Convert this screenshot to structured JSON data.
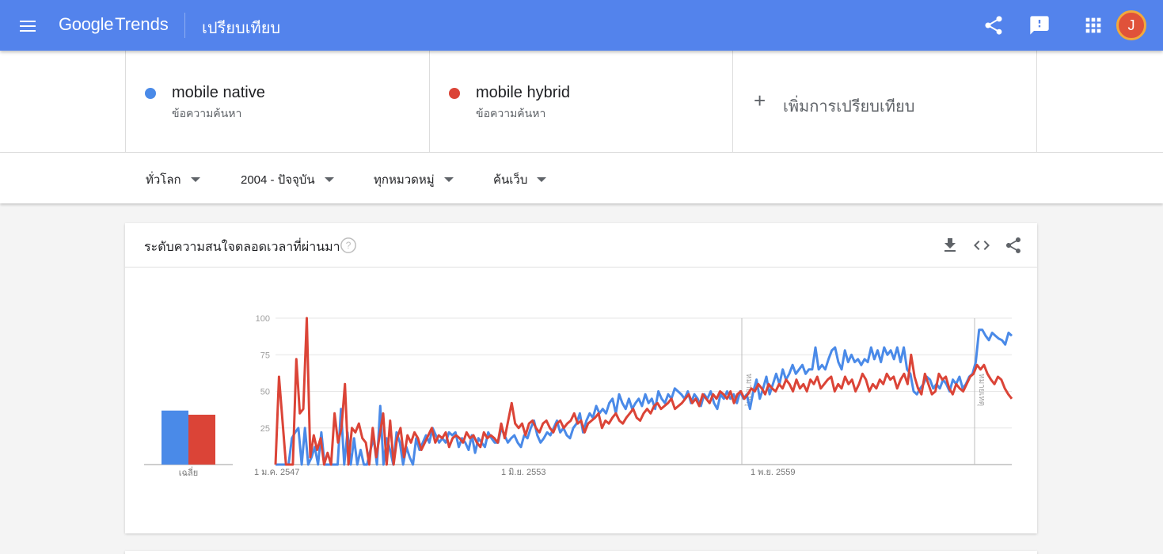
{
  "header": {
    "logo_google": "Google",
    "logo_trends": "Trends",
    "page_title": "เปรียบเทียบ",
    "avatar_letter": "J",
    "icons": [
      "menu-icon",
      "share-icon",
      "feedback-icon",
      "apps-icon"
    ]
  },
  "compare": {
    "terms": [
      {
        "name": "mobile native",
        "type": "ข้อความค้นหา",
        "color": "#4a8ae8"
      },
      {
        "name": "mobile hybrid",
        "type": "ข้อความค้นหา",
        "color": "#db4437"
      }
    ],
    "add_label": "เพิ่มการเปรียบเทียบ"
  },
  "filters": {
    "region": "ทั่วโลก",
    "time": "2004 - ปัจจุบัน",
    "category": "ทุกหมวดหมู่",
    "search_type": "ค้นเว็บ"
  },
  "card": {
    "title": "ระดับความสนใจตลอดเวลาที่ผ่านมา",
    "icons": [
      "help-icon",
      "download-icon",
      "embed-icon",
      "share-icon"
    ]
  },
  "chart_data": {
    "type": "line",
    "y_ticks": [
      "100",
      "75",
      "50",
      "25"
    ],
    "ylim": [
      0,
      100
    ],
    "x_ticks": [
      "1 ม.ค. 2547",
      "1 มิ.ย. 2553",
      "1 พ.ย. 2559"
    ],
    "notes": [
      "หมายเหตุ",
      "หมายเหตุ"
    ],
    "average_label": "เฉลี่ย",
    "averages": [
      39,
      36
    ],
    "series": [
      {
        "name": "mobile native",
        "color": "#4a8ae8",
        "values": [
          0,
          0,
          0,
          0,
          0,
          18,
          22,
          25,
          0,
          25,
          0,
          5,
          12,
          0,
          22,
          0,
          0,
          0,
          0,
          0,
          38,
          0,
          22,
          0,
          18,
          0,
          10,
          0,
          0,
          10,
          18,
          0,
          40,
          0,
          18,
          10,
          0,
          22,
          15,
          0,
          12,
          5,
          0,
          18,
          10,
          15,
          20,
          15,
          25,
          20,
          15,
          18,
          15,
          22,
          20,
          22,
          12,
          18,
          15,
          10,
          20,
          8,
          18,
          15,
          12,
          22,
          18,
          15,
          15,
          25,
          20,
          15,
          18,
          20,
          15,
          12,
          20,
          18,
          25,
          30,
          20,
          15,
          18,
          22,
          20,
          25,
          30,
          22,
          25,
          20,
          18,
          25,
          28,
          35,
          22,
          30,
          35,
          32,
          40,
          35,
          38,
          35,
          42,
          45,
          35,
          48,
          42,
          38,
          45,
          38,
          42,
          45,
          40,
          48,
          42,
          45,
          38,
          50,
          45,
          42,
          48,
          45,
          52,
          50,
          48,
          45,
          50,
          42,
          48,
          45,
          40,
          48,
          45,
          50,
          42,
          38,
          48,
          45,
          50,
          45,
          48,
          42,
          50,
          45,
          48,
          38,
          50,
          58,
          45,
          52,
          60,
          48,
          55,
          62,
          55,
          65,
          58,
          62,
          68,
          62,
          65,
          68,
          62,
          65,
          65,
          80,
          65,
          68,
          65,
          72,
          78,
          80,
          70,
          65,
          78,
          70,
          75,
          70,
          72,
          68,
          72,
          70,
          80,
          72,
          78,
          70,
          80,
          75,
          78,
          72,
          80,
          70,
          80,
          65,
          62,
          50,
          48,
          52,
          55,
          60,
          58,
          52,
          55,
          52,
          58,
          55,
          50,
          58,
          55,
          60,
          52,
          55,
          60,
          62,
          70,
          92,
          92,
          88,
          85,
          90,
          88,
          86,
          85,
          82,
          90,
          88
        ]
      },
      {
        "name": "mobile hybrid",
        "color": "#db4437",
        "values": [
          0,
          60,
          30,
          0,
          0,
          0,
          72,
          35,
          38,
          100,
          5,
          20,
          10,
          18,
          0,
          8,
          0,
          35,
          15,
          25,
          55,
          0,
          25,
          22,
          28,
          18,
          15,
          0,
          25,
          5,
          20,
          35,
          0,
          30,
          0,
          18,
          25,
          5,
          20,
          15,
          22,
          18,
          10,
          15,
          20,
          25,
          15,
          20,
          18,
          22,
          12,
          18,
          20,
          18,
          15,
          22,
          18,
          20,
          15,
          12,
          22,
          18,
          20,
          18,
          15,
          28,
          18,
          30,
          42,
          28,
          25,
          28,
          20,
          28,
          30,
          25,
          22,
          28,
          30,
          25,
          22,
          28,
          30,
          25,
          28,
          30,
          35,
          28,
          30,
          22,
          28,
          30,
          32,
          35,
          25,
          30,
          28,
          32,
          35,
          30,
          28,
          32,
          35,
          38,
          32,
          30,
          35,
          38,
          35,
          40,
          42,
          38,
          40,
          42,
          45,
          38,
          40,
          42,
          45,
          48,
          42,
          45,
          40,
          48,
          45,
          42,
          48,
          45,
          50,
          48,
          45,
          50,
          42,
          48,
          50,
          45,
          48,
          52,
          50,
          55,
          52,
          48,
          55,
          52,
          50,
          55,
          52,
          58,
          55,
          50,
          58,
          52,
          55,
          50,
          58,
          55,
          60,
          52,
          55,
          58,
          60,
          50,
          55,
          52,
          60,
          55,
          58,
          50,
          55,
          62,
          58,
          50,
          55,
          52,
          58,
          55,
          62,
          58,
          60,
          52,
          58,
          62,
          55,
          75,
          60,
          52,
          48,
          62,
          55,
          48,
          50,
          62,
          58,
          60,
          52,
          48,
          55,
          52,
          50,
          55,
          60,
          62,
          68,
          65,
          68,
          62,
          58,
          55,
          60,
          58,
          52,
          48,
          45
        ]
      }
    ]
  }
}
